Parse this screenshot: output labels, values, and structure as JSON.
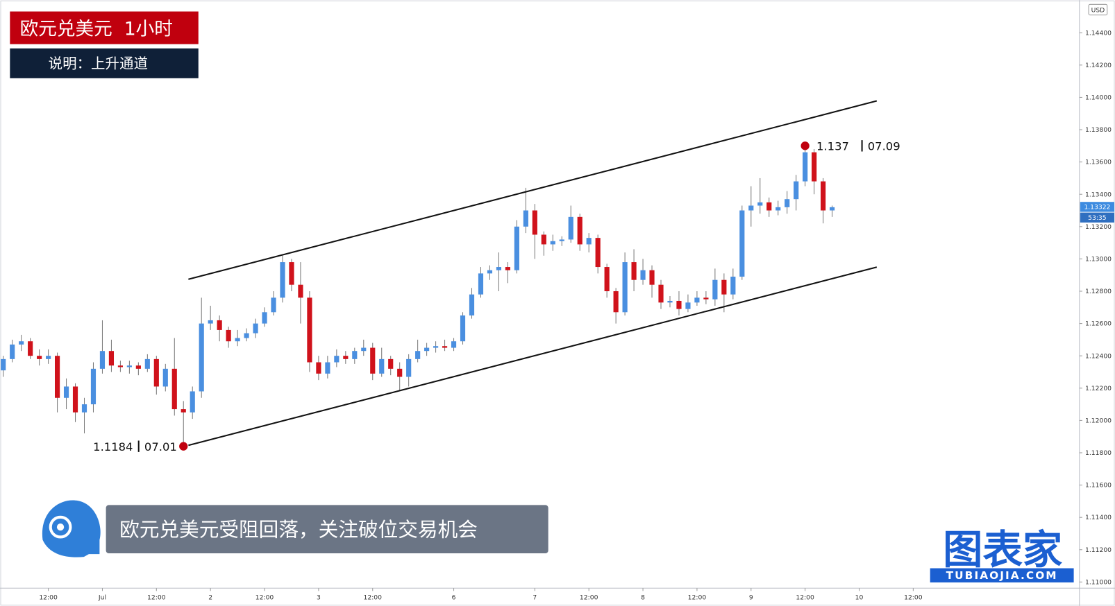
{
  "chart_data": {
    "type": "candlestick",
    "title": "欧元兑美元  1小时",
    "subtitle": "说明：上升通道",
    "caption": "欧元兑美元受阻回落，关注破位交易机会",
    "logo_text": "图表家",
    "logo_url": "TUBIAOJIA.COM",
    "currency": "USD",
    "up_color": "#4a8fe0",
    "down_color": "#d0121b",
    "open": [
      1.1231,
      1.1238,
      1.1247,
      1.1249,
      1.124,
      1.1238,
      1.124,
      1.1214,
      1.1221,
      1.1205,
      1.121,
      1.1232,
      1.1243,
      1.1234,
      1.1233,
      1.1234,
      1.1232,
      1.1238,
      1.1221,
      1.1232,
      1.1207,
      1.1205,
      1.1218,
      1.126,
      1.1262,
      1.1256,
      1.1249,
      1.1251,
      1.1254,
      1.126,
      1.1267,
      1.1276,
      1.1298,
      1.1284,
      1.1276,
      1.1236,
      1.1229,
      1.1236,
      1.124,
      1.1238,
      1.1243,
      1.1245,
      1.1229,
      1.1238,
      1.1232,
      1.1227,
      1.1238,
      1.1243,
      1.1245,
      1.1246,
      1.1245,
      1.1249,
      1.1265,
      1.1278,
      1.1291,
      1.1293,
      1.1295,
      1.1293,
      1.132,
      1.133,
      1.1315,
      1.1309,
      1.1311,
      1.1312,
      1.1326,
      1.1309,
      1.1313,
      1.1295,
      1.128,
      1.1267,
      1.1298,
      1.1287,
      1.1293,
      1.1284,
      1.1273,
      1.1274,
      1.1269,
      1.1273,
      1.1276,
      1.1275,
      1.1287,
      1.1278,
      1.1289,
      1.133,
      1.1333,
      1.1335,
      1.133,
      1.1332,
      1.1337,
      1.1348,
      1.1366,
      1.1348,
      1.133
    ],
    "high": [
      1.124,
      1.125,
      1.1253,
      1.1251,
      1.1244,
      1.1244,
      1.1242,
      1.1226,
      1.1223,
      1.1214,
      1.1236,
      1.1262,
      1.125,
      1.1237,
      1.1237,
      1.1236,
      1.1241,
      1.124,
      1.1235,
      1.1251,
      1.1212,
      1.1221,
      1.1276,
      1.1271,
      1.1265,
      1.1258,
      1.1256,
      1.1257,
      1.1263,
      1.127,
      1.128,
      1.1302,
      1.13,
      1.1298,
      1.128,
      1.124,
      1.124,
      1.1244,
      1.1243,
      1.1245,
      1.125,
      1.1248,
      1.1245,
      1.124,
      1.1236,
      1.1241,
      1.125,
      1.1248,
      1.1249,
      1.125,
      1.1251,
      1.1267,
      1.1282,
      1.1295,
      1.1296,
      1.1304,
      1.1298,
      1.1324,
      1.1344,
      1.1334,
      1.1317,
      1.1315,
      1.1314,
      1.1333,
      1.1328,
      1.1316,
      1.1315,
      1.1297,
      1.1282,
      1.1304,
      1.1306,
      1.13,
      1.1296,
      1.1287,
      1.1277,
      1.128,
      1.1278,
      1.128,
      1.128,
      1.1294,
      1.1291,
      1.1294,
      1.1333,
      1.1345,
      1.135,
      1.1338,
      1.1336,
      1.1342,
      1.1352,
      1.137,
      1.1368,
      1.135,
      1.1333
    ],
    "low": [
      1.1227,
      1.1236,
      1.1243,
      1.1238,
      1.1234,
      1.1235,
      1.1205,
      1.1207,
      1.1199,
      1.1192,
      1.1205,
      1.1229,
      1.123,
      1.123,
      1.1229,
      1.1228,
      1.123,
      1.1216,
      1.1218,
      1.1203,
      1.1184,
      1.1201,
      1.1214,
      1.1256,
      1.1249,
      1.1245,
      1.1246,
      1.1249,
      1.1251,
      1.1258,
      1.1265,
      1.1273,
      1.128,
      1.126,
      1.123,
      1.1225,
      1.1226,
      1.1233,
      1.1235,
      1.1235,
      1.124,
      1.1225,
      1.1227,
      1.1228,
      1.1218,
      1.1221,
      1.1236,
      1.124,
      1.1242,
      1.1243,
      1.1243,
      1.1247,
      1.1263,
      1.1276,
      1.1287,
      1.128,
      1.1285,
      1.1291,
      1.1316,
      1.13,
      1.1302,
      1.1305,
      1.1308,
      1.131,
      1.1305,
      1.1304,
      1.1291,
      1.1276,
      1.126,
      1.1265,
      1.128,
      1.1284,
      1.1276,
      1.1269,
      1.127,
      1.1265,
      1.1267,
      1.1271,
      1.1272,
      1.1271,
      1.1267,
      1.1275,
      1.1287,
      1.132,
      1.1328,
      1.1326,
      1.1327,
      1.1328,
      1.133,
      1.1345,
      1.134,
      1.1322,
      1.1326
    ],
    "close": [
      1.1238,
      1.1247,
      1.1249,
      1.124,
      1.1238,
      1.124,
      1.1214,
      1.1221,
      1.1205,
      1.121,
      1.1232,
      1.1243,
      1.1234,
      1.1233,
      1.1234,
      1.1232,
      1.1238,
      1.1221,
      1.1232,
      1.1207,
      1.1205,
      1.1218,
      1.126,
      1.1262,
      1.1256,
      1.1249,
      1.1251,
      1.1254,
      1.126,
      1.1267,
      1.1276,
      1.1298,
      1.1284,
      1.1276,
      1.1236,
      1.1229,
      1.1236,
      1.124,
      1.1238,
      1.1243,
      1.1245,
      1.1229,
      1.1238,
      1.1232,
      1.1227,
      1.1238,
      1.1243,
      1.1245,
      1.1246,
      1.1245,
      1.1249,
      1.1265,
      1.1278,
      1.1291,
      1.1293,
      1.1295,
      1.1293,
      1.132,
      1.133,
      1.1315,
      1.1309,
      1.1311,
      1.1312,
      1.1326,
      1.1309,
      1.1313,
      1.1295,
      1.128,
      1.1267,
      1.1298,
      1.1287,
      1.1293,
      1.1284,
      1.1273,
      1.1274,
      1.1269,
      1.1273,
      1.1276,
      1.1275,
      1.1287,
      1.1278,
      1.1289,
      1.133,
      1.1333,
      1.1335,
      1.133,
      1.1332,
      1.1337,
      1.1348,
      1.1366,
      1.1348,
      1.133,
      1.1332
    ],
    "xlim": [
      -0.363,
      119.45
    ],
    "xticks": [
      {
        "value": 5,
        "label": "12:00"
      },
      {
        "value": 11,
        "label": "Jul"
      },
      {
        "value": 17,
        "label": "12:00"
      },
      {
        "value": 23,
        "label": "2"
      },
      {
        "value": 29,
        "label": "12:00"
      },
      {
        "value": 35,
        "label": "3"
      },
      {
        "value": 41,
        "label": "12:00"
      },
      {
        "value": 50,
        "label": "6"
      },
      {
        "value": 59,
        "label": "7"
      },
      {
        "value": 65,
        "label": "12:00"
      },
      {
        "value": 71,
        "label": "8"
      },
      {
        "value": 77,
        "label": "12:00"
      },
      {
        "value": 83,
        "label": "9"
      },
      {
        "value": 89,
        "label": "12:00"
      },
      {
        "value": 95,
        "label": "10"
      },
      {
        "value": 101,
        "label": "12:00"
      }
    ],
    "ylim": [
      1.10962,
      1.14602
    ],
    "yticks": [
      {
        "value": 1.144,
        "label": "1.14400"
      },
      {
        "value": 1.142,
        "label": "1.14200"
      },
      {
        "value": 1.14,
        "label": "1.14000"
      },
      {
        "value": 1.138,
        "label": "1.13800"
      },
      {
        "value": 1.136,
        "label": "1.13600"
      },
      {
        "value": 1.134,
        "label": "1.13400"
      },
      {
        "value": 1.132,
        "label": "1.13200"
      },
      {
        "value": 1.13,
        "label": "1.13000"
      },
      {
        "value": 1.128,
        "label": "1.12800"
      },
      {
        "value": 1.126,
        "label": "1.12600"
      },
      {
        "value": 1.124,
        "label": "1.12400"
      },
      {
        "value": 1.122,
        "label": "1.12200"
      },
      {
        "value": 1.12,
        "label": "1.12000"
      },
      {
        "value": 1.118,
        "label": "1.11800"
      },
      {
        "value": 1.116,
        "label": "1.11600"
      },
      {
        "value": 1.114,
        "label": "1.11400"
      },
      {
        "value": 1.112,
        "label": "1.11200"
      },
      {
        "value": 1.11,
        "label": "1.11000"
      }
    ],
    "last_price": 1.13322,
    "countdown": "53:35",
    "channel": [
      {
        "start": [
          20.55,
          1.12874
        ],
        "end": [
          96.95,
          1.13978
        ]
      },
      {
        "start": [
          20.55,
          1.11846
        ],
        "end": [
          96.95,
          1.12949
        ]
      }
    ],
    "points": [
      {
        "x": 20,
        "price": 1.1184,
        "date": "07.01"
      },
      {
        "x": 89,
        "price": 1.137,
        "date": "07.09"
      }
    ]
  }
}
